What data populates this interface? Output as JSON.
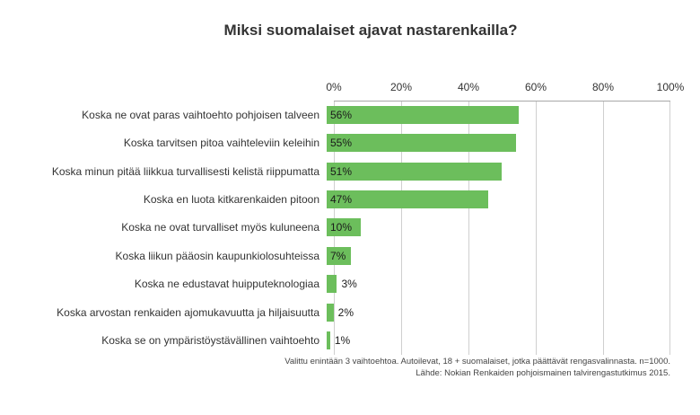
{
  "title": "Miksi suomalaiset ajavat nastarenkailla?",
  "footnote": {
    "line1": "Valittu enintään 3 vaihtoehtoa. Autoilevat, 18 + suomalaiset, jotka päättävät rengasvalinnasta. n=1000.",
    "line2": "Lähde: Nokian Renkaiden pohjoismainen talvirengastutkimus 2015."
  },
  "colors": {
    "bar": "#6cbe5c",
    "grid": "#cfcfcf",
    "axis": "#a8a8a8",
    "text": "#333333"
  },
  "chart_data": {
    "type": "bar",
    "orientation": "horizontal",
    "title": "Miksi suomalaiset ajavat nastarenkailla?",
    "categories": [
      "Koska ne ovat paras vaihtoehto pohjoisen talveen",
      "Koska tarvitsen pitoa vaihteleviin keleihin",
      "Koska minun pitää liikkua turvallisesti kelistä riippumatta",
      "Koska en luota kitkarenkaiden pitoon",
      "Koska ne ovat turvalliset myös kuluneena",
      "Koska liikun pääosin kaupunkiolosuhteissa",
      "Koska ne edustavat huipputeknologiaa",
      "Koska arvostan renkaiden ajomukavuutta ja hiljaisuutta",
      "Koska se on ympäristöystävällinen vaihtoehto"
    ],
    "values": [
      56,
      55,
      51,
      47,
      10,
      7,
      3,
      2,
      1
    ],
    "value_labels": [
      "56%",
      "55%",
      "51%",
      "47%",
      "10%",
      "7%",
      "3%",
      "2%",
      "1%"
    ],
    "x_ticks": [
      "0%",
      "20%",
      "40%",
      "60%",
      "80%",
      "100%"
    ],
    "xlim": [
      0,
      100
    ],
    "grid": true,
    "legend": "none",
    "xlabel": "",
    "ylabel": ""
  }
}
